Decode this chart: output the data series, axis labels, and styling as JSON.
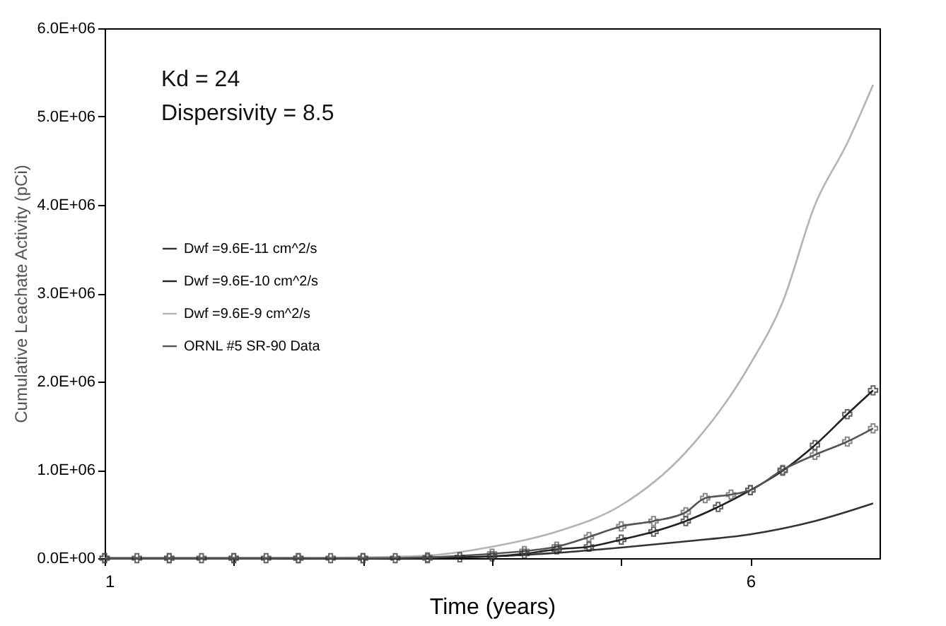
{
  "chart_data": {
    "type": "line",
    "xlabel": "Time (years)",
    "ylabel": "Cumulative Leachate Activity (pCi)",
    "annotations": [
      "Kd = 24",
      "Dispersivity = 8.5"
    ],
    "xlim": [
      1,
      7
    ],
    "xticks": [
      1,
      {
        "value": 2,
        "label": null
      },
      {
        "value": 3,
        "label": null
      },
      {
        "value": 4,
        "label": null
      },
      {
        "value": 5,
        "label": null
      },
      6
    ],
    "ylim": [
      0,
      6000000
    ],
    "yticks": [
      {
        "value": 0,
        "label": "0.0E+00"
      },
      {
        "value": 1000000,
        "label": "1.0E+06"
      },
      {
        "value": 2000000,
        "label": "2.0E+06"
      },
      {
        "value": 3000000,
        "label": "3.0E+06"
      },
      {
        "value": 4000000,
        "label": "4.0E+06"
      },
      {
        "value": 5000000,
        "label": "5.0E+06"
      },
      {
        "value": 6000000,
        "label": "6.0E+06"
      }
    ],
    "grid": false,
    "legend": "left",
    "series": [
      {
        "name": "Dwf =9.6E-11 cm^2/s",
        "color": "#333333",
        "marker": "none",
        "x": [
          1,
          2,
          3,
          3.5,
          4,
          4.5,
          5,
          5.5,
          6,
          6.5,
          6.95
        ],
        "values": [
          0,
          0,
          0,
          10000,
          20000,
          60000,
          120000,
          190000,
          270000,
          420000,
          620000
        ]
      },
      {
        "name": "Dwf =9.6E-10 cm^2/s",
        "color": "#222222",
        "marker": "cross",
        "x": [
          1,
          1.25,
          1.5,
          1.75,
          2,
          2.25,
          2.5,
          2.75,
          3,
          3.25,
          3.5,
          3.75,
          4,
          4.25,
          4.5,
          4.75,
          5,
          5.25,
          5.5,
          5.75,
          6,
          6.25,
          6.5,
          6.75,
          6.95
        ],
        "values": [
          0,
          0,
          0,
          0,
          0,
          0,
          0,
          0,
          0,
          0,
          0,
          10000,
          20000,
          50000,
          100000,
          130000,
          210000,
          300000,
          420000,
          580000,
          770000,
          990000,
          1280000,
          1630000,
          1900000
        ]
      },
      {
        "name": "Dwf =9.6E-9 cm^2/s",
        "color": "#b4b4b4",
        "marker": "none",
        "x": [
          1,
          2,
          3,
          3.5,
          4,
          4.5,
          5,
          5.5,
          6,
          6.25,
          6.5,
          6.75,
          6.95
        ],
        "values": [
          0,
          0,
          10000,
          30000,
          130000,
          300000,
          600000,
          1200000,
          2200000,
          2900000,
          4000000,
          4700000,
          5360000
        ]
      },
      {
        "name": "ORNL #5 SR-90 Data",
        "color": "#555555",
        "marker": "cross",
        "x": [
          1,
          1.5,
          2,
          2.5,
          3,
          3.5,
          4,
          4.25,
          4.5,
          4.75,
          5,
          5.25,
          5.5,
          5.65,
          5.85,
          6,
          6.25,
          6.5,
          6.75,
          6.95
        ],
        "values": [
          0,
          0,
          0,
          0,
          0,
          10000,
          50000,
          80000,
          130000,
          240000,
          360000,
          420000,
          520000,
          680000,
          720000,
          770000,
          1000000,
          1170000,
          1320000,
          1470000
        ]
      }
    ]
  }
}
